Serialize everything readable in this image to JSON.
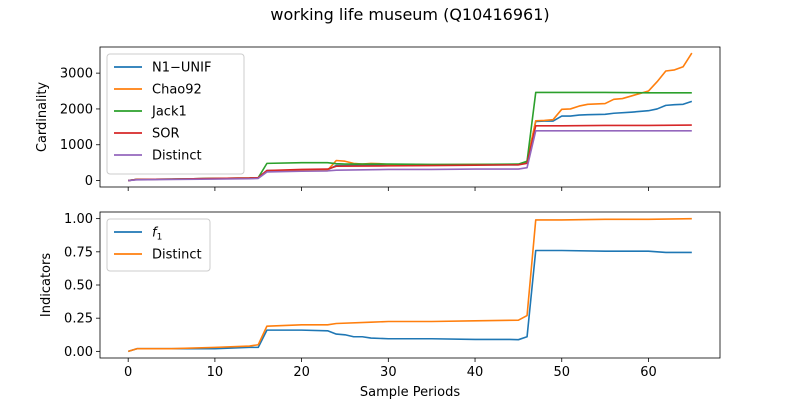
{
  "figure_title": "working life museum (Q10416961)",
  "chart_data": [
    {
      "type": "line",
      "panel": "top",
      "xlabel": "",
      "ylabel": "Cardinality",
      "xlim": [
        -3.25,
        68.25
      ],
      "ylim": [
        -180,
        3730
      ],
      "x_ticks": [
        0,
        10,
        20,
        30,
        40,
        50,
        60
      ],
      "y_ticks": [
        0,
        1000,
        2000,
        3000
      ],
      "show_x_tick_labels": false,
      "legend_position": "upper left",
      "grid": false,
      "series": [
        {
          "name": "N1−UNIF",
          "color": "#1f77b4",
          "x": [
            0,
            1,
            5,
            10,
            14,
            15,
            16,
            20,
            23,
            24,
            25,
            27,
            30,
            35,
            40,
            45,
            46,
            47,
            48,
            49,
            50,
            51,
            52,
            53,
            55,
            56,
            58,
            60,
            61,
            62,
            63,
            64,
            65
          ],
          "y": [
            0,
            30,
            40,
            60,
            70,
            80,
            280,
            290,
            300,
            420,
            420,
            430,
            440,
            440,
            440,
            440,
            520,
            1650,
            1660,
            1660,
            1800,
            1800,
            1830,
            1840,
            1850,
            1880,
            1910,
            1950,
            2000,
            2100,
            2120,
            2130,
            2210
          ]
        },
        {
          "name": "Chao92",
          "color": "#ff7f0e",
          "x": [
            0,
            1,
            5,
            10,
            14,
            15,
            16,
            20,
            23,
            24,
            25,
            26,
            27,
            28,
            29,
            30,
            31,
            35,
            40,
            45,
            46,
            47,
            48,
            49,
            50,
            51,
            52,
            53,
            55,
            56,
            57,
            58,
            59,
            60,
            61,
            62,
            63,
            64,
            65
          ],
          "y": [
            0,
            30,
            40,
            60,
            70,
            80,
            270,
            280,
            290,
            560,
            540,
            480,
            460,
            480,
            470,
            450,
            440,
            440,
            450,
            450,
            540,
            1670,
            1680,
            1700,
            1990,
            2000,
            2080,
            2130,
            2150,
            2270,
            2290,
            2360,
            2430,
            2500,
            2760,
            3060,
            3090,
            3180,
            3560
          ]
        },
        {
          "name": "Jack1",
          "color": "#2ca02c",
          "x": [
            0,
            1,
            5,
            10,
            14,
            15,
            16,
            20,
            23,
            24,
            25,
            30,
            35,
            40,
            45,
            46,
            47,
            48,
            50,
            55,
            60,
            65
          ],
          "y": [
            0,
            30,
            40,
            60,
            70,
            80,
            480,
            500,
            500,
            470,
            460,
            460,
            450,
            450,
            460,
            540,
            2460,
            2460,
            2460,
            2460,
            2450,
            2450
          ]
        },
        {
          "name": "SOR",
          "color": "#d62728",
          "x": [
            0,
            1,
            5,
            10,
            14,
            15,
            16,
            20,
            23,
            24,
            30,
            35,
            40,
            45,
            46,
            47,
            50,
            55,
            60,
            65
          ],
          "y": [
            0,
            30,
            40,
            60,
            70,
            80,
            280,
            310,
            320,
            400,
            410,
            420,
            430,
            440,
            480,
            1530,
            1530,
            1540,
            1540,
            1550
          ]
        },
        {
          "name": "Distinct",
          "color": "#9467bd",
          "x": [
            0,
            1,
            5,
            10,
            14,
            15,
            16,
            20,
            23,
            24,
            30,
            35,
            40,
            45,
            46,
            47,
            50,
            55,
            60,
            65
          ],
          "y": [
            0,
            20,
            30,
            40,
            50,
            60,
            240,
            260,
            270,
            290,
            310,
            310,
            320,
            320,
            360,
            1390,
            1390,
            1390,
            1390,
            1390
          ]
        }
      ]
    },
    {
      "type": "line",
      "panel": "bottom",
      "xlabel": "Sample Periods",
      "ylabel": "Indicators",
      "xlim": [
        -3.25,
        68.25
      ],
      "ylim": [
        -0.05,
        1.05
      ],
      "x_ticks": [
        0,
        10,
        20,
        30,
        40,
        50,
        60
      ],
      "y_ticks": [
        0.0,
        0.25,
        0.5,
        0.75,
        1.0
      ],
      "y_tick_labels": [
        "0.00",
        "0.25",
        "0.50",
        "0.75",
        "1.00"
      ],
      "show_x_tick_labels": true,
      "legend_position": "upper left",
      "grid": false,
      "series": [
        {
          "name": "f1",
          "color": "#1f77b4",
          "x": [
            0,
            1,
            5,
            10,
            14,
            15,
            16,
            20,
            23,
            24,
            25,
            26,
            27,
            28,
            30,
            35,
            40,
            43,
            44,
            45,
            46,
            47,
            48,
            50,
            55,
            60,
            62,
            65
          ],
          "y": [
            0.0,
            0.02,
            0.02,
            0.02,
            0.03,
            0.03,
            0.16,
            0.16,
            0.155,
            0.13,
            0.125,
            0.11,
            0.11,
            0.1,
            0.095,
            0.095,
            0.09,
            0.09,
            0.09,
            0.088,
            0.11,
            0.76,
            0.76,
            0.76,
            0.755,
            0.755,
            0.745,
            0.745
          ]
        },
        {
          "name": "Distinct",
          "color": "#ff7f0e",
          "x": [
            0,
            1,
            5,
            10,
            14,
            15,
            16,
            20,
            23,
            24,
            28,
            30,
            35,
            40,
            45,
            46,
            47,
            50,
            55,
            60,
            65
          ],
          "y": [
            0.0,
            0.02,
            0.02,
            0.03,
            0.04,
            0.05,
            0.19,
            0.2,
            0.2,
            0.21,
            0.22,
            0.225,
            0.225,
            0.23,
            0.235,
            0.27,
            0.99,
            0.99,
            0.995,
            0.995,
            1.0
          ]
        }
      ]
    }
  ]
}
